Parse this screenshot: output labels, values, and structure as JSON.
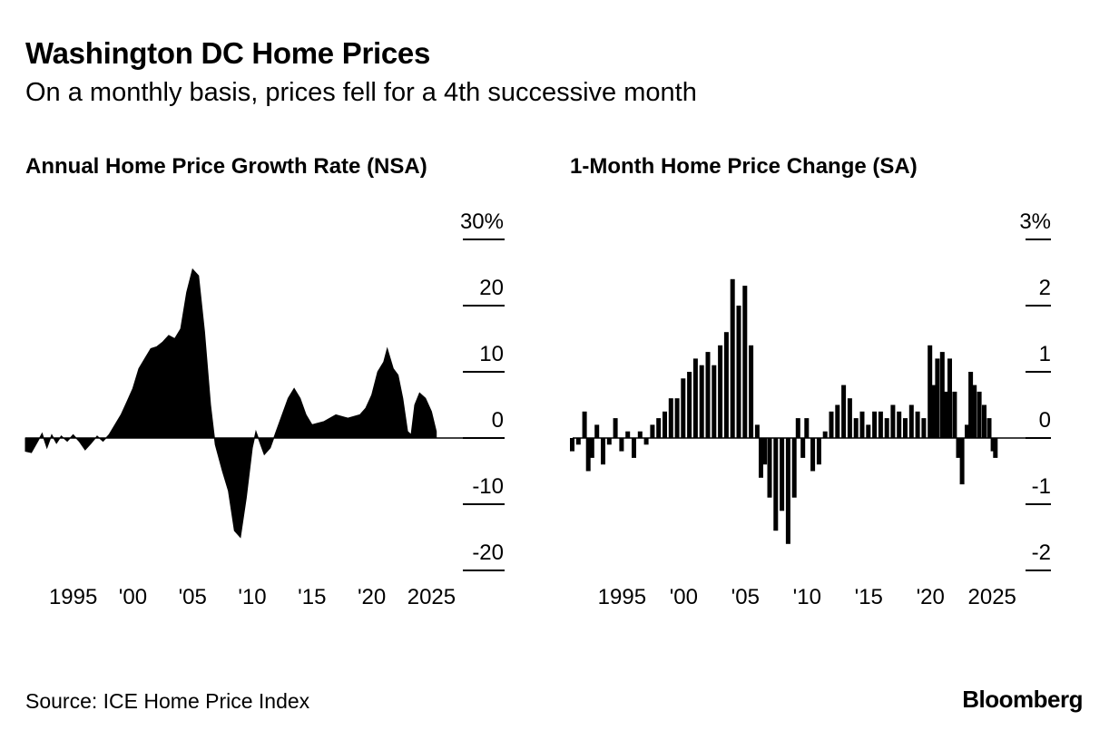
{
  "header": {
    "title": "Washington DC Home Prices",
    "subtitle": "On a monthly basis, prices fell for a 4th successive month"
  },
  "footer": {
    "source": "Source: ICE Home Price Index",
    "brand": "Bloomberg"
  },
  "chart_data": [
    {
      "type": "area",
      "title": "Annual Home Price Growth Rate (NSA)",
      "xlabel": "",
      "ylabel": "",
      "x_range": [
        1991.0,
        2025.5
      ],
      "ylim": [
        -20,
        30
      ],
      "yticks": [
        30,
        20,
        10,
        0,
        -10,
        -20
      ],
      "ytick_labels": [
        "30%",
        "20",
        "10",
        "0",
        "-10",
        "-20"
      ],
      "xticks": [
        1995,
        2000,
        2005,
        2010,
        2015,
        2020,
        2025
      ],
      "xtick_labels": [
        "1995",
        "'00",
        "'05",
        "'10",
        "'15",
        "'20",
        "2025"
      ],
      "grid": false,
      "points": [
        [
          1991.0,
          -2.0
        ],
        [
          1991.5,
          -2.2
        ],
        [
          1992.0,
          -0.6
        ],
        [
          1992.4,
          0.7
        ],
        [
          1992.8,
          -1.5
        ],
        [
          1993.2,
          0.5
        ],
        [
          1993.6,
          -0.8
        ],
        [
          1994.0,
          0.3
        ],
        [
          1994.5,
          -0.5
        ],
        [
          1995.0,
          0.5
        ],
        [
          1995.5,
          -0.5
        ],
        [
          1996.0,
          -1.8
        ],
        [
          1996.5,
          -0.8
        ],
        [
          1997.0,
          0.3
        ],
        [
          1997.5,
          -0.5
        ],
        [
          1998.0,
          0.5
        ],
        [
          1998.5,
          2.0
        ],
        [
          1999.0,
          3.5
        ],
        [
          1999.5,
          5.5
        ],
        [
          2000.0,
          7.5
        ],
        [
          2000.5,
          10.5
        ],
        [
          2001.0,
          12.0
        ],
        [
          2001.5,
          13.5
        ],
        [
          2002.0,
          13.8
        ],
        [
          2002.5,
          14.5
        ],
        [
          2003.0,
          15.5
        ],
        [
          2003.5,
          15.0
        ],
        [
          2004.0,
          16.5
        ],
        [
          2004.5,
          22.0
        ],
        [
          2005.0,
          25.5
        ],
        [
          2005.5,
          24.5
        ],
        [
          2006.0,
          16.0
        ],
        [
          2006.5,
          5.0
        ],
        [
          2006.9,
          -1.0
        ],
        [
          2007.5,
          -5.0
        ],
        [
          2008.0,
          -8.0
        ],
        [
          2008.5,
          -14.0
        ],
        [
          2009.0,
          -15.0
        ],
        [
          2009.5,
          -9.0
        ],
        [
          2010.0,
          -1.5
        ],
        [
          2010.3,
          1.0
        ],
        [
          2010.7,
          -1.0
        ],
        [
          2011.0,
          -2.5
        ],
        [
          2011.5,
          -1.5
        ],
        [
          2012.0,
          1.0
        ],
        [
          2012.5,
          3.5
        ],
        [
          2013.0,
          6.0
        ],
        [
          2013.5,
          7.5
        ],
        [
          2014.0,
          6.0
        ],
        [
          2014.5,
          3.5
        ],
        [
          2015.0,
          2.0
        ],
        [
          2016.0,
          2.5
        ],
        [
          2017.0,
          3.5
        ],
        [
          2018.0,
          3.0
        ],
        [
          2019.0,
          3.5
        ],
        [
          2019.5,
          4.5
        ],
        [
          2020.0,
          6.5
        ],
        [
          2020.5,
          10.0
        ],
        [
          2021.0,
          11.5
        ],
        [
          2021.3,
          13.5
        ],
        [
          2021.8,
          10.5
        ],
        [
          2022.2,
          9.5
        ],
        [
          2022.6,
          6.0
        ],
        [
          2023.0,
          1.0
        ],
        [
          2023.3,
          0.5
        ],
        [
          2023.6,
          5.0
        ],
        [
          2024.0,
          6.8
        ],
        [
          2024.5,
          6.0
        ],
        [
          2025.0,
          4.0
        ],
        [
          2025.4,
          1.0
        ]
      ]
    },
    {
      "type": "bar",
      "title": "1-Month Home Price Change (SA)",
      "xlabel": "",
      "ylabel": "",
      "x_range": [
        1991.0,
        2025.5
      ],
      "ylim": [
        -2,
        3
      ],
      "yticks": [
        3,
        2,
        1,
        0,
        -1,
        -2
      ],
      "ytick_labels": [
        "3%",
        "2",
        "1",
        "0",
        "-1",
        "-2"
      ],
      "xticks": [
        1995,
        2000,
        2005,
        2010,
        2015,
        2020,
        2025
      ],
      "xtick_labels": [
        "1995",
        "'00",
        "'05",
        "'10",
        "'15",
        "'20",
        "2025"
      ],
      "grid": false,
      "points": [
        [
          1991.0,
          -0.2
        ],
        [
          1991.5,
          -0.1
        ],
        [
          1992.0,
          0.4
        ],
        [
          1992.3,
          -0.5
        ],
        [
          1992.6,
          -0.3
        ],
        [
          1993.0,
          0.2
        ],
        [
          1993.5,
          -0.4
        ],
        [
          1994.0,
          -0.1
        ],
        [
          1994.5,
          0.3
        ],
        [
          1995.0,
          -0.2
        ],
        [
          1995.5,
          0.1
        ],
        [
          1996.0,
          -0.3
        ],
        [
          1996.5,
          0.1
        ],
        [
          1997.0,
          -0.1
        ],
        [
          1997.5,
          0.2
        ],
        [
          1998.0,
          0.3
        ],
        [
          1998.5,
          0.4
        ],
        [
          1999.0,
          0.6
        ],
        [
          1999.5,
          0.6
        ],
        [
          2000.0,
          0.9
        ],
        [
          2000.5,
          1.0
        ],
        [
          2001.0,
          1.2
        ],
        [
          2001.5,
          1.1
        ],
        [
          2002.0,
          1.3
        ],
        [
          2002.5,
          1.1
        ],
        [
          2003.0,
          1.4
        ],
        [
          2003.5,
          1.6
        ],
        [
          2004.0,
          2.4
        ],
        [
          2004.5,
          2.0
        ],
        [
          2005.0,
          2.3
        ],
        [
          2005.5,
          1.4
        ],
        [
          2006.0,
          0.2
        ],
        [
          2006.3,
          -0.6
        ],
        [
          2006.6,
          -0.4
        ],
        [
          2007.0,
          -0.9
        ],
        [
          2007.5,
          -1.4
        ],
        [
          2008.0,
          -1.1
        ],
        [
          2008.5,
          -1.6
        ],
        [
          2009.0,
          -0.9
        ],
        [
          2009.3,
          0.3
        ],
        [
          2009.7,
          -0.3
        ],
        [
          2010.0,
          0.3
        ],
        [
          2010.5,
          -0.5
        ],
        [
          2011.0,
          -0.4
        ],
        [
          2011.5,
          0.1
        ],
        [
          2012.0,
          0.4
        ],
        [
          2012.5,
          0.5
        ],
        [
          2013.0,
          0.8
        ],
        [
          2013.5,
          0.6
        ],
        [
          2014.0,
          0.3
        ],
        [
          2014.5,
          0.4
        ],
        [
          2015.0,
          0.2
        ],
        [
          2015.5,
          0.4
        ],
        [
          2016.0,
          0.4
        ],
        [
          2016.5,
          0.3
        ],
        [
          2017.0,
          0.5
        ],
        [
          2017.5,
          0.4
        ],
        [
          2018.0,
          0.3
        ],
        [
          2018.5,
          0.5
        ],
        [
          2019.0,
          0.4
        ],
        [
          2019.5,
          0.3
        ],
        [
          2020.0,
          1.4
        ],
        [
          2020.3,
          0.8
        ],
        [
          2020.6,
          1.2
        ],
        [
          2021.0,
          1.3
        ],
        [
          2021.3,
          0.7
        ],
        [
          2021.6,
          1.2
        ],
        [
          2022.0,
          0.7
        ],
        [
          2022.3,
          -0.3
        ],
        [
          2022.6,
          -0.7
        ],
        [
          2023.0,
          0.2
        ],
        [
          2023.3,
          1.0
        ],
        [
          2023.6,
          0.8
        ],
        [
          2024.0,
          0.7
        ],
        [
          2024.4,
          0.5
        ],
        [
          2024.8,
          0.3
        ],
        [
          2025.1,
          -0.2
        ],
        [
          2025.3,
          -0.3
        ]
      ]
    }
  ]
}
